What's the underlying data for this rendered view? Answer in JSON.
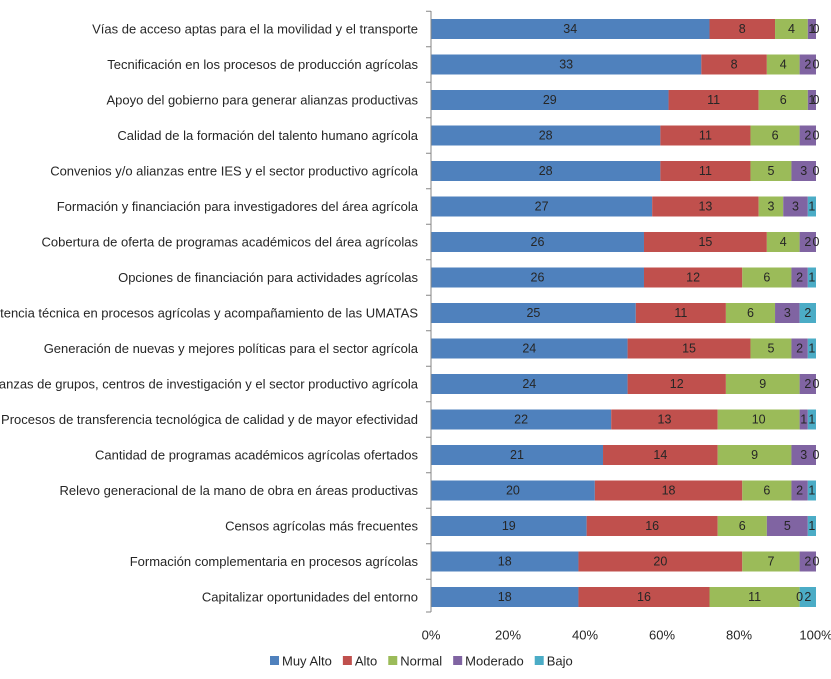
{
  "chart_data": {
    "type": "bar",
    "orientation": "horizontal",
    "stacked": "percent",
    "title": "",
    "xlabel": "",
    "ylabel": "",
    "xlim": [
      0,
      100
    ],
    "x_ticks": [
      "0%",
      "20%",
      "40%",
      "60%",
      "80%",
      "100%"
    ],
    "grid": false,
    "legend_position": "bottom",
    "categories": [
      "Vías de acceso aptas para el la movilidad y el transporte",
      "Tecnificación en los procesos de producción agrícolas",
      "Apoyo del gobierno para generar alianzas productivas",
      "Calidad de la formación del talento humano agrícola",
      "Convenios y/o alianzas entre IES y el sector productivo agrícola",
      "Formación y financiación para investigadores del área agrícola",
      "Cobertura de oferta de programas académicos del área agrícolas",
      "Opciones de financiación para actividades agrícolas",
      "Asistencia técnica en procesos agrícolas y acompañamiento de las UMATAS",
      "Generación de nuevas y mejores políticas para el sector agrícola",
      "Alianzas de grupos, centros de investigación y el sector productivo agrícola",
      "Procesos de transferencia tecnológica de calidad y de mayor efectividad",
      "Cantidad de programas académicos agrícolas ofertados",
      "Relevo generacional de la mano de obra en áreas productivas",
      "Censos agrícolas más frecuentes",
      "Formación complementaria en procesos agrícolas",
      "Capitalizar oportunidades del entorno"
    ],
    "series": [
      {
        "name": "Muy Alto",
        "color": "#4F81BD",
        "values": [
          34,
          33,
          29,
          28,
          28,
          27,
          26,
          26,
          25,
          24,
          24,
          22,
          21,
          20,
          19,
          18,
          18
        ]
      },
      {
        "name": "Alto",
        "color": "#C0504D",
        "values": [
          8,
          8,
          11,
          11,
          11,
          13,
          15,
          12,
          11,
          15,
          12,
          13,
          14,
          18,
          16,
          20,
          16
        ]
      },
      {
        "name": "Normal",
        "color": "#9BBB59",
        "values": [
          4,
          4,
          6,
          6,
          5,
          3,
          4,
          6,
          6,
          5,
          9,
          10,
          9,
          6,
          6,
          7,
          11
        ]
      },
      {
        "name": "Moderado",
        "color": "#8064A2",
        "values": [
          1,
          2,
          1,
          2,
          3,
          3,
          2,
          2,
          3,
          2,
          2,
          1,
          3,
          2,
          5,
          2,
          0
        ]
      },
      {
        "name": "Bajo",
        "color": "#4BACC6",
        "values": [
          0,
          0,
          0,
          0,
          0,
          1,
          0,
          1,
          2,
          1,
          0,
          1,
          0,
          1,
          1,
          0,
          2
        ]
      }
    ]
  }
}
